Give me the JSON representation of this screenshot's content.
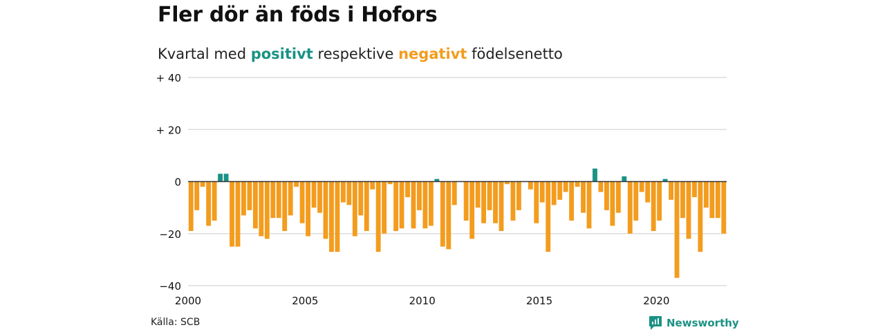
{
  "header": {
    "title": "Fler dör än föds i Hofors",
    "subtitle_before": "Kvartal med",
    "subtitle_positive": "positivt",
    "subtitle_middle": "respektive",
    "subtitle_negative": "negativt",
    "subtitle_after": "födelsenetto"
  },
  "footer": {
    "source": "Källa: SCB",
    "brand": "Newsworthy",
    "brand_icon": "bar-chart-speech-icon"
  },
  "colors": {
    "positive": "#1a9284",
    "negative": "#f39c1e",
    "grid": "#dddddd",
    "zero_line": "#333333"
  },
  "chart_data": {
    "type": "bar",
    "ylim": [
      -40,
      40
    ],
    "yticks": [
      {
        "value": 40,
        "label": "+ 40"
      },
      {
        "value": 20,
        "label": "+ 20"
      },
      {
        "value": 0,
        "label": "0"
      },
      {
        "value": -20,
        "label": "−20"
      },
      {
        "value": -40,
        "label": "−40"
      }
    ],
    "xticks": [
      {
        "year": 2000,
        "label": "2000"
      },
      {
        "year": 2005,
        "label": "2005"
      },
      {
        "year": 2010,
        "label": "2010"
      },
      {
        "year": 2015,
        "label": "2015"
      },
      {
        "year": 2020,
        "label": "2020"
      }
    ],
    "x_range": [
      2000,
      2023
    ],
    "start_year": 2000,
    "grid": true,
    "values": [
      -19,
      -11,
      -2,
      -17,
      -15,
      3,
      3,
      -25,
      -25,
      -13,
      -11,
      -18,
      -21,
      -22,
      -14,
      -14,
      -19,
      -13,
      -2,
      -16,
      -21,
      -10,
      -12,
      -22,
      -27,
      -27,
      -8,
      -9,
      -21,
      -13,
      -19,
      -3,
      -27,
      -20,
      -1,
      -19,
      -18,
      -6,
      -18,
      -11,
      -18,
      -17,
      1,
      -25,
      -26,
      -9,
      0,
      -15,
      -22,
      -10,
      -16,
      -11,
      -16,
      -19,
      -1,
      -15,
      -11,
      0,
      -3,
      -16,
      -8,
      -27,
      -9,
      -7,
      -4,
      -15,
      -2,
      -12,
      -18,
      5,
      -4,
      -11,
      -17,
      -12,
      2,
      -20,
      -15,
      -4,
      -8,
      -19,
      -15,
      1,
      -7,
      -37,
      -14,
      -22,
      -6,
      -27,
      -10,
      -14,
      -14,
      -20
    ]
  }
}
